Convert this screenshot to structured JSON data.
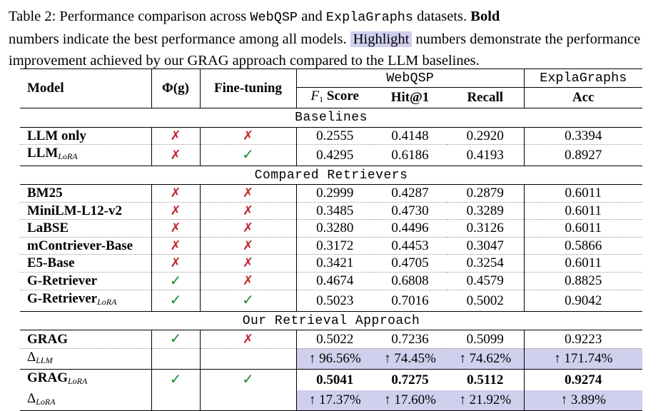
{
  "caption": {
    "l1_a": "Table 2: Performance comparison across ",
    "l1_ds1": "WebQSP",
    "l1_b": " and ",
    "l1_ds2": "ExplaGraphs",
    "l1_c": " datasets. ",
    "l1_bold": "Bold",
    "l2_a": "numbers indicate the best performance among all models. ",
    "l2_hl": "Highlight",
    "l2_b": " numbers demonstrate the performance",
    "l3": "improvement achieved by our GRAG approach compared to the LLM baselines."
  },
  "header": {
    "model": "Model",
    "phi": "Φ(g)",
    "ft": "Fine-tuning",
    "webqsp": "WebQSP",
    "explagraphs": "ExplaGraphs",
    "f1_sym": "F",
    "f1_sub": "1",
    "f1_rest": " Score",
    "hit": "Hit@1",
    "recall": "Recall",
    "acc": "Acc"
  },
  "sections": {
    "baselines": "Baselines",
    "retrievers": "Compared Retrievers",
    "ours": "Our Retrieval Approach"
  },
  "marks": {
    "cross": "✗",
    "check": "✓"
  },
  "rows": {
    "llm_only": {
      "model": "LLM only",
      "f1": "0.2555",
      "hit": "0.4148",
      "recall": "0.2920",
      "acc": "0.3394"
    },
    "llm_lora": {
      "model": "LLM",
      "sub": "LoRA",
      "f1": "0.4295",
      "hit": "0.6186",
      "recall": "0.4193",
      "acc": "0.8927"
    },
    "bm25": {
      "model": "BM25",
      "f1": "0.2999",
      "hit": "0.4287",
      "recall": "0.2879",
      "acc": "0.6011"
    },
    "minilm": {
      "model": "MiniLM-L12-v2",
      "f1": "0.3485",
      "hit": "0.4730",
      "recall": "0.3289",
      "acc": "0.6011"
    },
    "labse": {
      "model": "LaBSE",
      "f1": "0.3280",
      "hit": "0.4496",
      "recall": "0.3126",
      "acc": "0.6011"
    },
    "mcontriever": {
      "model": "mContriever-Base",
      "f1": "0.3172",
      "hit": "0.4453",
      "recall": "0.3047",
      "acc": "0.5866"
    },
    "e5": {
      "model": "E5-Base",
      "f1": "0.3421",
      "hit": "0.4705",
      "recall": "0.3254",
      "acc": "0.6011"
    },
    "gret": {
      "model": "G-Retriever",
      "f1": "0.4674",
      "hit": "0.6808",
      "recall": "0.4579",
      "acc": "0.8825"
    },
    "gret_lora": {
      "model": "G-Retriever",
      "sub": "LoRA",
      "f1": "0.5023",
      "hit": "0.7016",
      "recall": "0.5002",
      "acc": "0.9042"
    },
    "grag": {
      "model": "GRAG",
      "f1": "0.5022",
      "hit": "0.7236",
      "recall": "0.5099",
      "acc": "0.9223"
    },
    "delta_llm": {
      "model": "Δ",
      "sub": "LLM",
      "f1": "↑ 96.56%",
      "hit": "↑ 74.45%",
      "recall": "↑ 74.62%",
      "acc": "↑ 171.74%"
    },
    "grag_lora": {
      "model": "GRAG",
      "sub": "LoRA",
      "f1": "0.5041",
      "hit": "0.7275",
      "recall": "0.5112",
      "acc": "0.9274"
    },
    "delta_lora": {
      "model": "Δ",
      "sub": "LoRA",
      "f1": "↑ 17.37%",
      "hit": "↑ 17.60%",
      "recall": "↑ 21.92%",
      "acc": "↑ 3.89%"
    }
  }
}
